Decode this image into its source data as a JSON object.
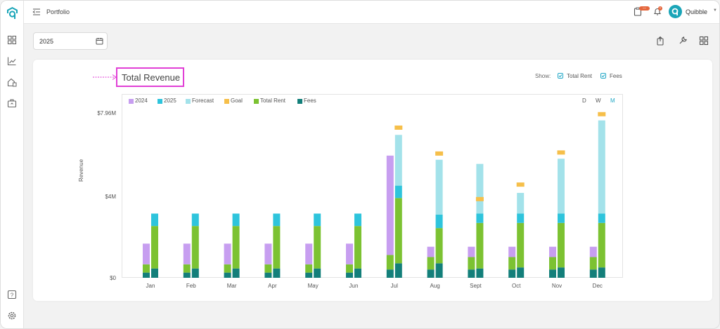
{
  "topbar": {
    "breadcrumb": "Portfolio",
    "user_name": "Quibble",
    "notifications": [
      {
        "icon": "briefcase-icon",
        "count": "—"
      },
      {
        "icon": "bell-icon",
        "count": "•"
      }
    ]
  },
  "sidebar": {
    "icons": [
      "dashboard-icon",
      "analytics-icon",
      "property-icon",
      "briefcase-icon"
    ],
    "bottom_icons": [
      "help-icon",
      "settings-icon"
    ]
  },
  "filters": {
    "year": "2025"
  },
  "card": {
    "title": "Total Revenue",
    "show_label": "Show:",
    "toggles": [
      {
        "label": "Total Rent",
        "checked": true
      },
      {
        "label": "Fees",
        "checked": true
      }
    ]
  },
  "colors": {
    "accent": "#21a7c6",
    "y2024": "#c79ef0",
    "y2025": "#2ec4dc",
    "forecast": "#a3e2ea",
    "goal": "#f6bf4a",
    "rent": "#7cc232",
    "fees": "#137f7a",
    "highlight": "#e13fd6"
  },
  "chart_data": {
    "type": "bar",
    "title": "Total Revenue",
    "ylabel": "Revenue",
    "ylim": [
      0,
      7960000
    ],
    "ytick_labels": [
      "$0",
      "$4M",
      "$7.96M"
    ],
    "legend": [
      "2024",
      "2025",
      "Forecast",
      "Goal",
      "Total Rent",
      "Fees"
    ],
    "period_toggles": [
      {
        "label": "D",
        "active": false
      },
      {
        "label": "W",
        "active": false
      },
      {
        "label": "M",
        "active": true
      }
    ],
    "categories": [
      "Jan",
      "Feb",
      "Mar",
      "Apr",
      "May",
      "Jun",
      "Jul",
      "Aug",
      "Sept",
      "Oct",
      "Nov",
      "Dec"
    ],
    "series_2024": {
      "rent": [
        0.4,
        0.4,
        0.4,
        0.4,
        0.4,
        0.4,
        0.7,
        0.6,
        0.6,
        0.6,
        0.6,
        0.6
      ],
      "fees": [
        0.25,
        0.25,
        0.25,
        0.25,
        0.25,
        0.25,
        0.4,
        0.4,
        0.4,
        0.4,
        0.4,
        0.4
      ],
      "other": [
        1.0,
        1.0,
        1.0,
        1.0,
        1.0,
        1.0,
        4.8,
        0.5,
        0.5,
        0.5,
        0.5,
        0.5
      ]
    },
    "series_2025": {
      "fees": [
        0.45,
        0.45,
        0.45,
        0.45,
        0.45,
        0.45,
        0.7,
        0.7,
        0.45,
        0.5,
        0.5,
        0.5
      ],
      "rent": [
        2.05,
        2.05,
        2.05,
        2.05,
        2.05,
        2.05,
        3.15,
        1.7,
        2.2,
        2.15,
        2.15,
        2.15
      ],
      "y2025": [
        0.6,
        0.6,
        0.6,
        0.6,
        0.6,
        0.6,
        0.6,
        0.65,
        0.45,
        0.45,
        0.45,
        0.45
      ],
      "forecast": [
        0,
        0,
        0,
        0,
        0,
        0,
        2.45,
        2.65,
        2.4,
        1.0,
        2.65,
        4.5
      ],
      "goal": [
        null,
        null,
        null,
        null,
        null,
        null,
        7.25,
        6.0,
        3.8,
        4.5,
        6.05,
        7.9
      ]
    }
  }
}
